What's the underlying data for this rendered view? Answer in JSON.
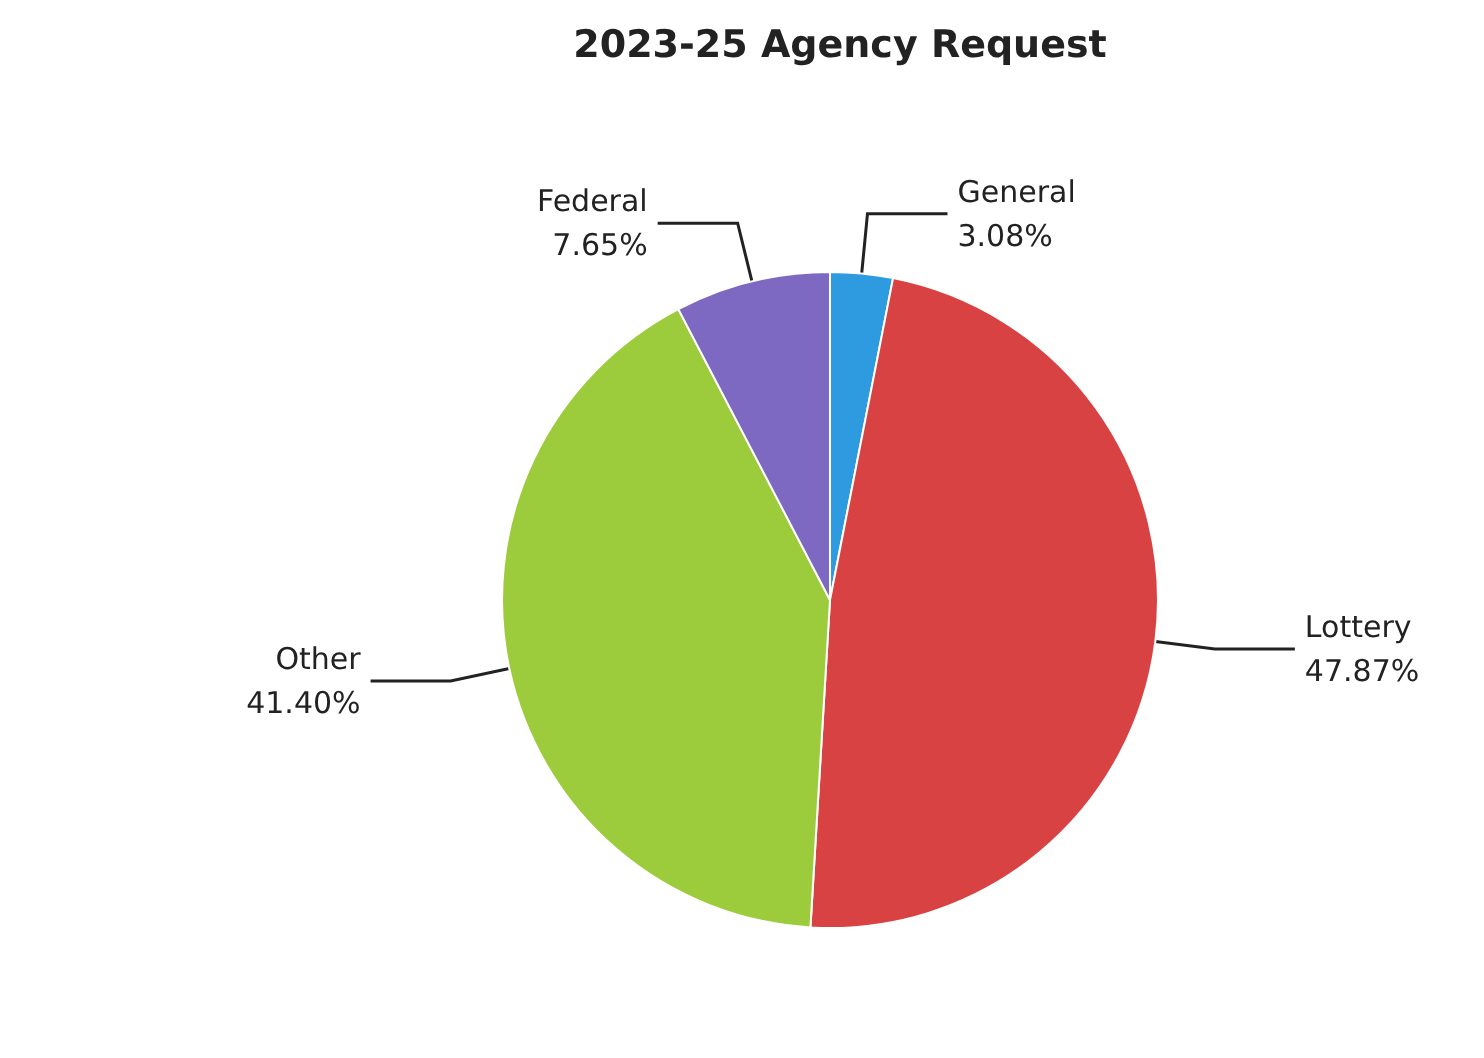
{
  "chart_data": {
    "type": "pie",
    "title": "2023-25 Agency Request",
    "categories": [
      "General",
      "Lottery",
      "Other",
      "Federal"
    ],
    "values": [
      3.08,
      47.87,
      41.4,
      7.65
    ],
    "value_labels": [
      "3.08%",
      "47.87%",
      "41.40%",
      "7.65%"
    ],
    "colors": [
      "#2e9be0",
      "#d94242",
      "#9ccc3c",
      "#7d68c2"
    ],
    "legend": false
  }
}
